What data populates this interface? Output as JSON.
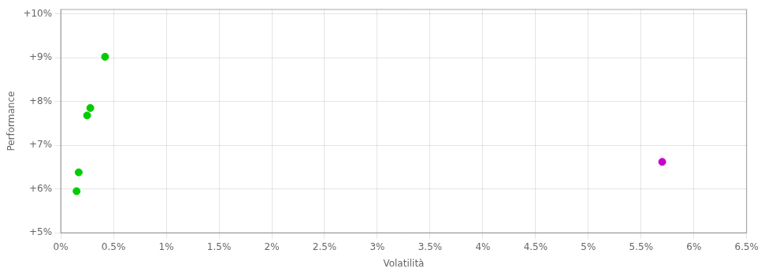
{
  "chart_data": {
    "type": "scatter",
    "xlabel": "Volatilità",
    "ylabel": "Performance",
    "xlim": [
      0.0,
      0.065
    ],
    "ylim": [
      0.05,
      0.101
    ],
    "xticks": [
      {
        "value": 0.0,
        "label": "0%"
      },
      {
        "value": 0.005,
        "label": "0.5%"
      },
      {
        "value": 0.01,
        "label": "1%"
      },
      {
        "value": 0.015,
        "label": "1.5%"
      },
      {
        "value": 0.02,
        "label": "2%"
      },
      {
        "value": 0.025,
        "label": "2.5%"
      },
      {
        "value": 0.03,
        "label": "3%"
      },
      {
        "value": 0.035,
        "label": "3.5%"
      },
      {
        "value": 0.04,
        "label": "4%"
      },
      {
        "value": 0.045,
        "label": "4.5%"
      },
      {
        "value": 0.05,
        "label": "5%"
      },
      {
        "value": 0.055,
        "label": "5.5%"
      },
      {
        "value": 0.06,
        "label": "6%"
      },
      {
        "value": 0.065,
        "label": "6.5%"
      }
    ],
    "yticks": [
      {
        "value": 0.05,
        "label": "+5%"
      },
      {
        "value": 0.06,
        "label": "+6%"
      },
      {
        "value": 0.07,
        "label": "+7%"
      },
      {
        "value": 0.08,
        "label": "+8%"
      },
      {
        "value": 0.09,
        "label": "+9%"
      },
      {
        "value": 0.1,
        "label": "+10%"
      }
    ],
    "grid": true,
    "series": [
      {
        "color": "#00cc00",
        "marker": "circle",
        "x": [
          0.0042,
          0.0028,
          0.0025,
          0.0017,
          0.0015
        ],
        "values": [
          0.0902,
          0.0785,
          0.0768,
          0.0638,
          0.0595
        ]
      },
      {
        "color": "#cc00cc",
        "marker": "circle",
        "x": [
          0.057
        ],
        "values": [
          0.0662
        ]
      }
    ]
  }
}
